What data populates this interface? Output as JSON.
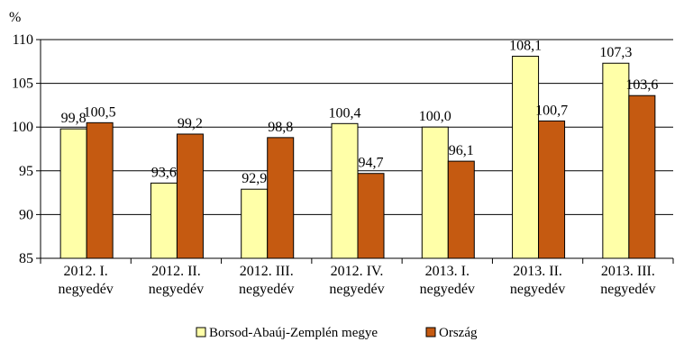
{
  "chart_data": {
    "type": "bar",
    "unit_label": "%",
    "categories": [
      [
        "2012. I.",
        "negyedév"
      ],
      [
        "2012. II.",
        "negyedév"
      ],
      [
        "2012. III.",
        "negyedév"
      ],
      [
        "2012. IV.",
        "negyedév"
      ],
      [
        "2013. I.",
        "negyedév"
      ],
      [
        "2013. II.",
        "negyedév"
      ],
      [
        "2013. III.",
        "negyedév"
      ]
    ],
    "series": [
      {
        "name": "Borsod-Abaúj-Zemplén megye",
        "color": "#ffffa8",
        "values": [
          99.8,
          93.6,
          92.9,
          100.4,
          100.0,
          108.1,
          107.3
        ]
      },
      {
        "name": "Ország",
        "color": "#c55a11",
        "values": [
          100.5,
          99.2,
          98.8,
          94.7,
          96.1,
          100.7,
          103.6
        ]
      }
    ],
    "value_labels": [
      [
        "99,8",
        "93,6",
        "92,9",
        "100,4",
        "100,0",
        "108,1",
        "107,3"
      ],
      [
        "100,5",
        "99,2",
        "98,8",
        "94,7",
        "96,1",
        "100,7",
        "103,6"
      ]
    ],
    "ylim": [
      85,
      110
    ],
    "y_ticks": [
      85,
      90,
      95,
      100,
      105,
      110
    ],
    "grid": true,
    "legend_position": "bottom"
  }
}
